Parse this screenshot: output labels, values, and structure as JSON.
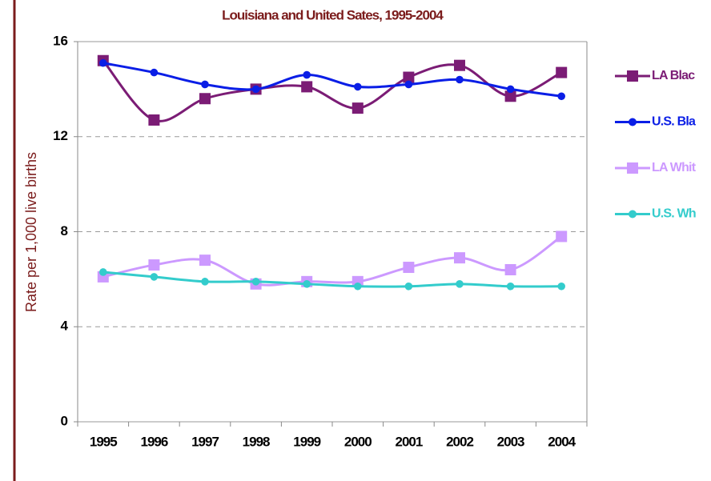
{
  "chart_data": {
    "type": "line",
    "title": "Louisiana and United Sates, 1995-2004",
    "y_label": "Rate per 1,000 live births",
    "categories": [
      "1995",
      "1996",
      "1997",
      "1998",
      "1999",
      "2000",
      "2001",
      "2002",
      "2003",
      "2004"
    ],
    "series": [
      {
        "name": "LA Blac",
        "color": "#7b1c75",
        "marker": "square",
        "values": [
          15.2,
          12.7,
          13.6,
          14.0,
          14.1,
          13.2,
          14.5,
          15.0,
          13.7,
          14.7
        ]
      },
      {
        "name": "U.S. Bla",
        "color": "#0a1ee6",
        "marker": "circle",
        "values": [
          15.1,
          14.7,
          14.2,
          14.0,
          14.6,
          14.1,
          14.2,
          14.4,
          14.0,
          13.7
        ]
      },
      {
        "name": "LA Whit",
        "color": "#cc99ff",
        "marker": "square",
        "values": [
          6.1,
          6.6,
          6.8,
          5.8,
          5.9,
          5.9,
          6.5,
          6.9,
          6.4,
          7.8
        ]
      },
      {
        "name": "U.S. Wh",
        "color": "#33cccc",
        "marker": "circle",
        "values": [
          6.3,
          6.1,
          5.9,
          5.9,
          5.8,
          5.7,
          5.7,
          5.8,
          5.7,
          5.7
        ]
      }
    ],
    "ylim": [
      0,
      16
    ],
    "yticks": [
      0,
      4,
      8,
      12,
      16
    ],
    "grid": true,
    "legend": "right"
  }
}
